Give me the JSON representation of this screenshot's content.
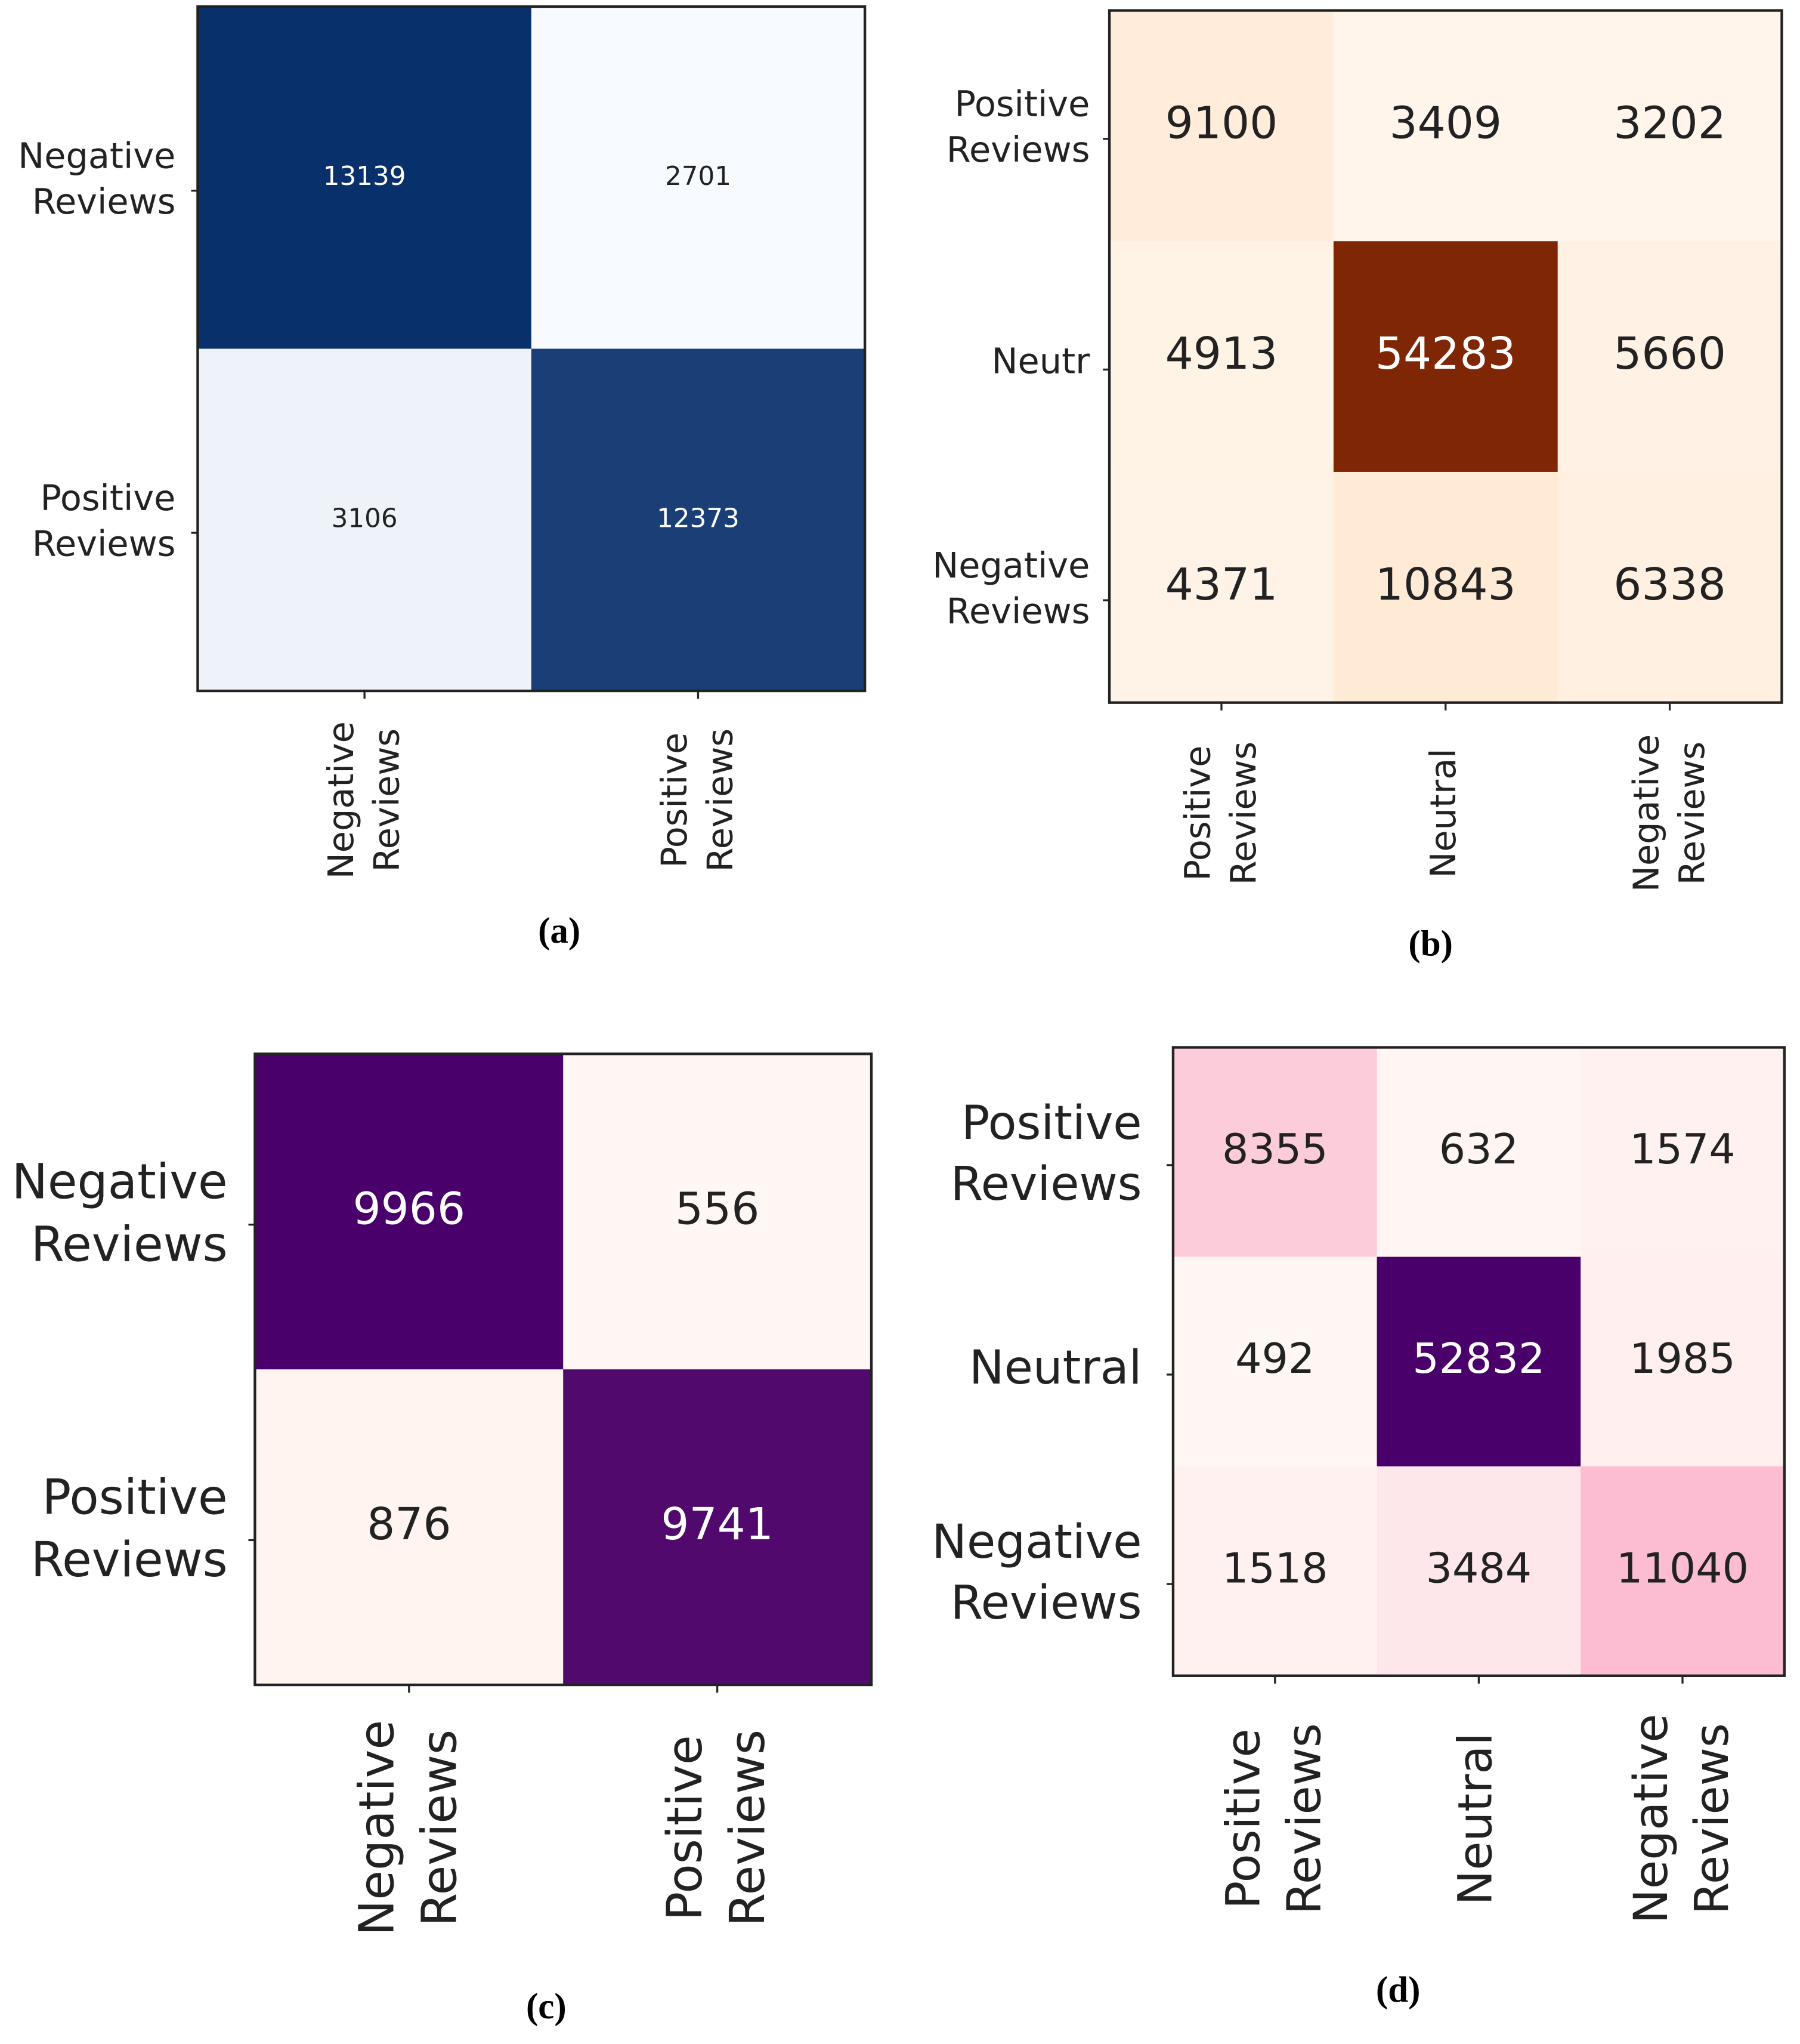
{
  "chart_data": [
    {
      "type": "heatmap",
      "caption": "(a)",
      "x_categories": [
        "Negative Reviews",
        "Positive Reviews"
      ],
      "y_categories": [
        "Negative Reviews",
        "Positive Reviews"
      ],
      "values": [
        [
          13139,
          2701
        ],
        [
          3106,
          12373
        ]
      ],
      "colormap": [
        "#f7fbff",
        "#08306b"
      ]
    },
    {
      "type": "heatmap",
      "caption": "(b)",
      "x_categories": [
        "Positive Reviews",
        "Neutral",
        "Negative Reviews"
      ],
      "y_categories": [
        "Positive Reviews",
        "Neutr",
        "Negative Reviews"
      ],
      "values": [
        [
          9100,
          3409,
          3202
        ],
        [
          4913,
          54283,
          5660
        ],
        [
          4371,
          10843,
          6338
        ]
      ],
      "colormap": [
        "#fff5eb",
        "#fdd0a2",
        "#7f2704"
      ]
    },
    {
      "type": "heatmap",
      "caption": "(c)",
      "x_categories": [
        "Negative Reviews",
        "Positive Reviews"
      ],
      "y_categories": [
        "Negative Reviews",
        "Positive Reviews"
      ],
      "values": [
        [
          9966,
          556
        ],
        [
          876,
          9741
        ]
      ],
      "colormap": [
        "#fff7f3",
        "#fcc5c0",
        "#49006a"
      ]
    },
    {
      "type": "heatmap",
      "caption": "(d)",
      "x_categories": [
        "Positive Reviews",
        "Neutral",
        "Negative Reviews"
      ],
      "y_categories": [
        "Positive Reviews",
        "Neutral",
        "Negative Reviews"
      ],
      "values": [
        [
          8355,
          632,
          1574
        ],
        [
          492,
          52832,
          1985
        ],
        [
          1518,
          3484,
          11040
        ]
      ],
      "colormap": [
        "#fff7f3",
        "#f768a1",
        "#49006a"
      ]
    }
  ]
}
